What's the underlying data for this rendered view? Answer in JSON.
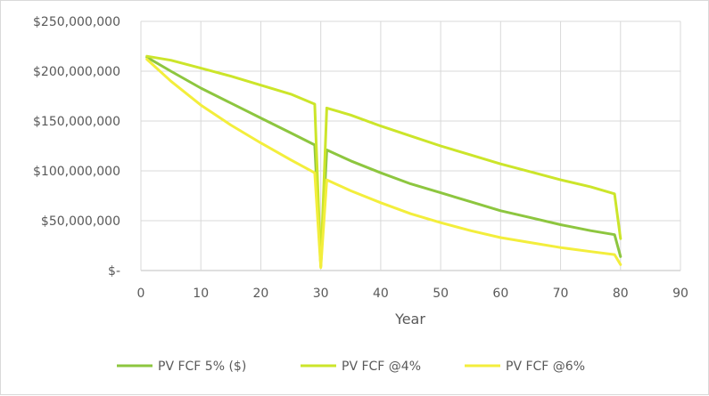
{
  "chart_data": {
    "type": "line",
    "title": "",
    "xlabel": "Year",
    "ylabel": "",
    "xlim": [
      0,
      90
    ],
    "ylim": [
      0,
      250000000
    ],
    "x_ticks": [
      0,
      10,
      20,
      30,
      40,
      50,
      60,
      70,
      80,
      90
    ],
    "x_tick_labels": [
      "0",
      "10",
      "20",
      "30",
      "40",
      "50",
      "60",
      "70",
      "80",
      "90"
    ],
    "y_ticks": [
      0,
      50000000,
      100000000,
      150000000,
      200000000,
      250000000
    ],
    "y_tick_labels": [
      "$-",
      "$50,000,000",
      "$100,000,000",
      "$150,000,000",
      "$200,000,000",
      "$250,000,000"
    ],
    "grid": true,
    "legend_position": "bottom",
    "series": [
      {
        "name": "PV FCF 5% ($)",
        "color": "#8dc63f",
        "points": [
          [
            1,
            214000000
          ],
          [
            5,
            200000000
          ],
          [
            10,
            183000000
          ],
          [
            15,
            168000000
          ],
          [
            20,
            153000000
          ],
          [
            25,
            138000000
          ],
          [
            29,
            126000000
          ],
          [
            30,
            5000000
          ],
          [
            31,
            121000000
          ],
          [
            35,
            110000000
          ],
          [
            40,
            98000000
          ],
          [
            45,
            87000000
          ],
          [
            50,
            78000000
          ],
          [
            55,
            69000000
          ],
          [
            60,
            60000000
          ],
          [
            65,
            53000000
          ],
          [
            70,
            46000000
          ],
          [
            75,
            40000000
          ],
          [
            79,
            36000000
          ],
          [
            80,
            14000000
          ]
        ]
      },
      {
        "name": "PV FCF @4%",
        "color": "#cce52a",
        "points": [
          [
            1,
            215000000
          ],
          [
            5,
            211000000
          ],
          [
            10,
            203000000
          ],
          [
            15,
            195000000
          ],
          [
            20,
            186000000
          ],
          [
            25,
            177000000
          ],
          [
            29,
            167000000
          ],
          [
            30,
            4000000
          ],
          [
            31,
            163000000
          ],
          [
            35,
            156000000
          ],
          [
            40,
            145000000
          ],
          [
            45,
            135000000
          ],
          [
            50,
            125000000
          ],
          [
            55,
            116000000
          ],
          [
            60,
            107000000
          ],
          [
            65,
            99000000
          ],
          [
            70,
            91000000
          ],
          [
            75,
            84000000
          ],
          [
            79,
            77000000
          ],
          [
            80,
            32000000
          ]
        ]
      },
      {
        "name": "PV FCF @6%",
        "color": "#f3ee3c",
        "points": [
          [
            1,
            212000000
          ],
          [
            5,
            190000000
          ],
          [
            10,
            166000000
          ],
          [
            15,
            146000000
          ],
          [
            20,
            128000000
          ],
          [
            25,
            111000000
          ],
          [
            29,
            98000000
          ],
          [
            30,
            3000000
          ],
          [
            31,
            91000000
          ],
          [
            35,
            80000000
          ],
          [
            40,
            68000000
          ],
          [
            45,
            57000000
          ],
          [
            50,
            48000000
          ],
          [
            55,
            40000000
          ],
          [
            60,
            33000000
          ],
          [
            65,
            28000000
          ],
          [
            70,
            23000000
          ],
          [
            75,
            19000000
          ],
          [
            79,
            16000000
          ],
          [
            80,
            6000000
          ]
        ]
      }
    ]
  }
}
